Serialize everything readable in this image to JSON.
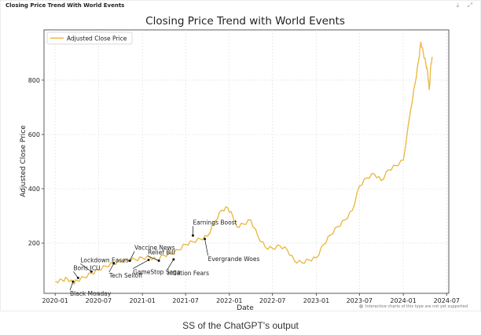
{
  "panel": {
    "title": "Closing Price Trend With World Events",
    "download_icon": "download-icon",
    "expand_icon": "expand-icon",
    "footnote": "Interactive charts of this type are not yet supported"
  },
  "caption": "SS of the ChatGPT's output",
  "chart_data": {
    "type": "line",
    "title": "Closing Price Trend with World Events",
    "xlabel": "Date",
    "ylabel": "Adjusted Close Price",
    "legend": "top-left",
    "grid": true,
    "xlim": [
      "2019-11-15",
      "2024-07-10"
    ],
    "ylim": [
      15,
      985
    ],
    "x_ticks": [
      "2020-01",
      "2020-07",
      "2021-01",
      "2021-07",
      "2022-01",
      "2022-07",
      "2023-01",
      "2023-07",
      "2024-01",
      "2024-07"
    ],
    "y_ticks": [
      200,
      400,
      600,
      800
    ],
    "line_color": "#e8b63a",
    "series": [
      {
        "name": "Adjusted Close Price",
        "points": [
          [
            "2020-01-02",
            59
          ],
          [
            "2020-02-01",
            63
          ],
          [
            "2020-02-20",
            70
          ],
          [
            "2020-03-16",
            52
          ],
          [
            "2020-04-01",
            62
          ],
          [
            "2020-05-01",
            74
          ],
          [
            "2020-06-01",
            88
          ],
          [
            "2020-07-01",
            102
          ],
          [
            "2020-08-01",
            115
          ],
          [
            "2020-09-01",
            125
          ],
          [
            "2020-10-01",
            133
          ],
          [
            "2020-11-01",
            138
          ],
          [
            "2020-12-01",
            140
          ],
          [
            "2021-01-01",
            145
          ],
          [
            "2021-02-01",
            148
          ],
          [
            "2021-03-01",
            138
          ],
          [
            "2021-04-01",
            155
          ],
          [
            "2021-05-01",
            160
          ],
          [
            "2021-06-01",
            175
          ],
          [
            "2021-07-01",
            195
          ],
          [
            "2021-08-01",
            205
          ],
          [
            "2021-09-01",
            215
          ],
          [
            "2021-10-01",
            225
          ],
          [
            "2021-11-01",
            280
          ],
          [
            "2021-12-01",
            322
          ],
          [
            "2021-12-25",
            330
          ],
          [
            "2022-01-15",
            300
          ],
          [
            "2022-02-01",
            260
          ],
          [
            "2022-03-01",
            270
          ],
          [
            "2022-04-01",
            285
          ],
          [
            "2022-05-01",
            225
          ],
          [
            "2022-06-01",
            185
          ],
          [
            "2022-07-01",
            180
          ],
          [
            "2022-08-01",
            190
          ],
          [
            "2022-09-01",
            175
          ],
          [
            "2022-10-01",
            135
          ],
          [
            "2022-11-01",
            128
          ],
          [
            "2022-12-01",
            138
          ],
          [
            "2023-01-01",
            145
          ],
          [
            "2023-02-01",
            195
          ],
          [
            "2023-03-01",
            230
          ],
          [
            "2023-04-01",
            260
          ],
          [
            "2023-05-01",
            285
          ],
          [
            "2023-06-01",
            320
          ],
          [
            "2023-07-01",
            410
          ],
          [
            "2023-08-01",
            440
          ],
          [
            "2023-09-01",
            455
          ],
          [
            "2023-10-01",
            430
          ],
          [
            "2023-11-01",
            470
          ],
          [
            "2023-12-01",
            485
          ],
          [
            "2024-01-01",
            505
          ],
          [
            "2024-02-01",
            690
          ],
          [
            "2024-02-20",
            790
          ],
          [
            "2024-03-05",
            870
          ],
          [
            "2024-03-15",
            940
          ],
          [
            "2024-03-25",
            900
          ],
          [
            "2024-04-05",
            860
          ],
          [
            "2024-04-12",
            830
          ],
          [
            "2024-04-19",
            765
          ],
          [
            "2024-04-26",
            860
          ],
          [
            "2024-05-03",
            885
          ]
        ]
      }
    ],
    "annotations": [
      {
        "text": "Black Monday",
        "date": "2020-03-16",
        "value": 58
      },
      {
        "text": "Boris ICU",
        "date": "2020-04-06",
        "value": 72
      },
      {
        "text": "Lockdown Eases",
        "date": "2020-06-01",
        "value": 95
      },
      {
        "text": "Tech Selloff",
        "date": "2020-09-03",
        "value": 125
      },
      {
        "text": "Vaccine News",
        "date": "2020-11-09",
        "value": 135
      },
      {
        "text": "GameStop Saga",
        "date": "2021-01-27",
        "value": 138
      },
      {
        "text": "Relief Bill",
        "date": "2021-03-11",
        "value": 135
      },
      {
        "text": "Inflation Fears",
        "date": "2021-05-12",
        "value": 140
      },
      {
        "text": "Earnings Boost",
        "date": "2021-08-01",
        "value": 228
      },
      {
        "text": "Evergrande Woes",
        "date": "2021-09-20",
        "value": 215
      }
    ]
  }
}
